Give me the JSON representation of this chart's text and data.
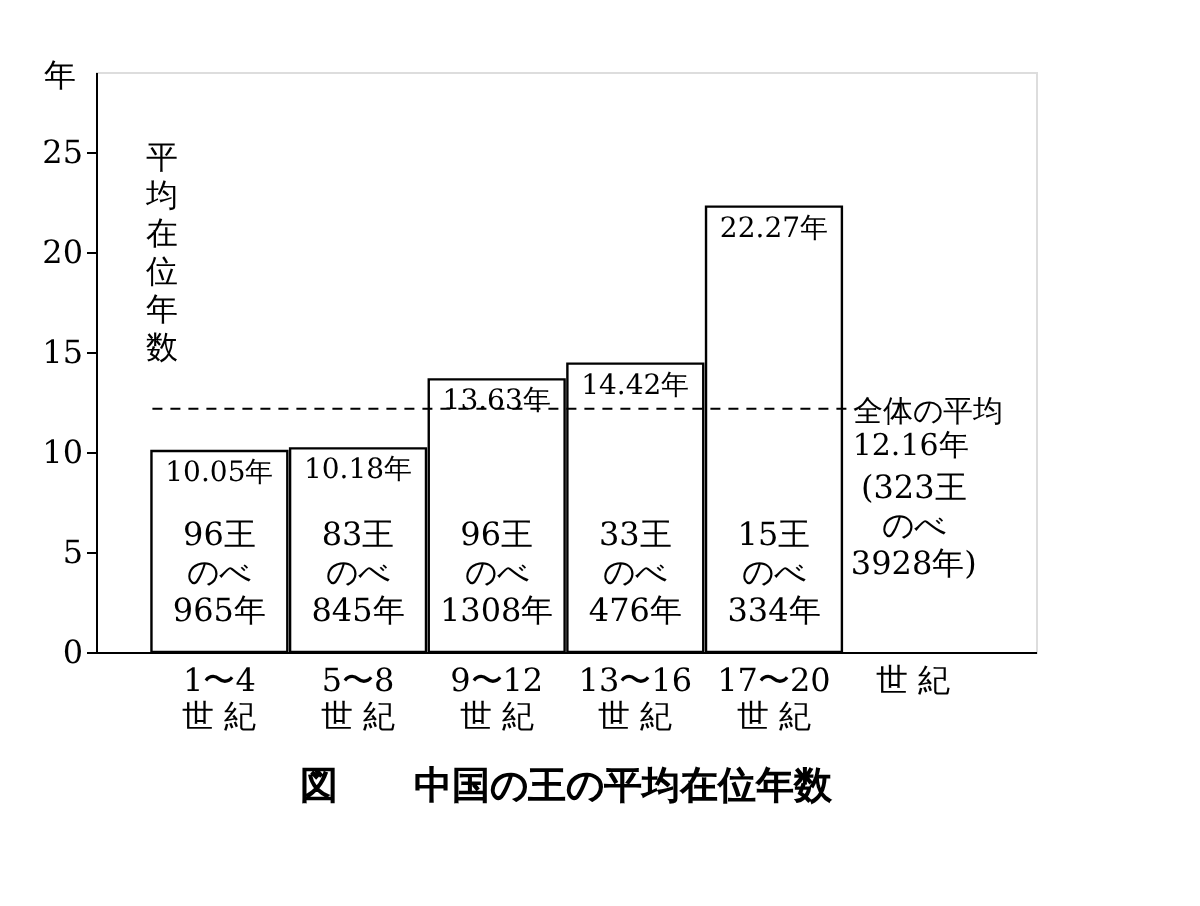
{
  "chart_data": {
    "type": "bar",
    "title": "図　　中国の王の平均在位年数",
    "categories": [
      "1〜4\n世 紀",
      "5〜8\n世 紀",
      "9〜12\n世 紀",
      "13〜16\n世 紀",
      "17〜20\n世 紀"
    ],
    "values": [
      10.05,
      10.18,
      13.63,
      14.42,
      22.27
    ],
    "value_labels": [
      "10.05年",
      "10.18年",
      "13.63年",
      "14.42年",
      "22.27年"
    ],
    "color": "#ffffff",
    "xlabel": "世 紀",
    "ylabel": "年",
    "ylim": [
      0,
      29
    ],
    "yticks": [
      0,
      5,
      10,
      15,
      20,
      25
    ],
    "grid": false,
    "ref_lines": [
      {
        "axis": "y",
        "value": 12.16,
        "label": "全体の平均\n12.16年",
        "line_style": "dashed",
        "color": "#000000"
      }
    ],
    "annotations": [
      "平均在位年数",
      "(323王のべ3928年)",
      "96王のべ965年",
      "83王のべ845年",
      "96王のべ1308年",
      "33王のべ476年",
      "15王のべ334年"
    ]
  }
}
